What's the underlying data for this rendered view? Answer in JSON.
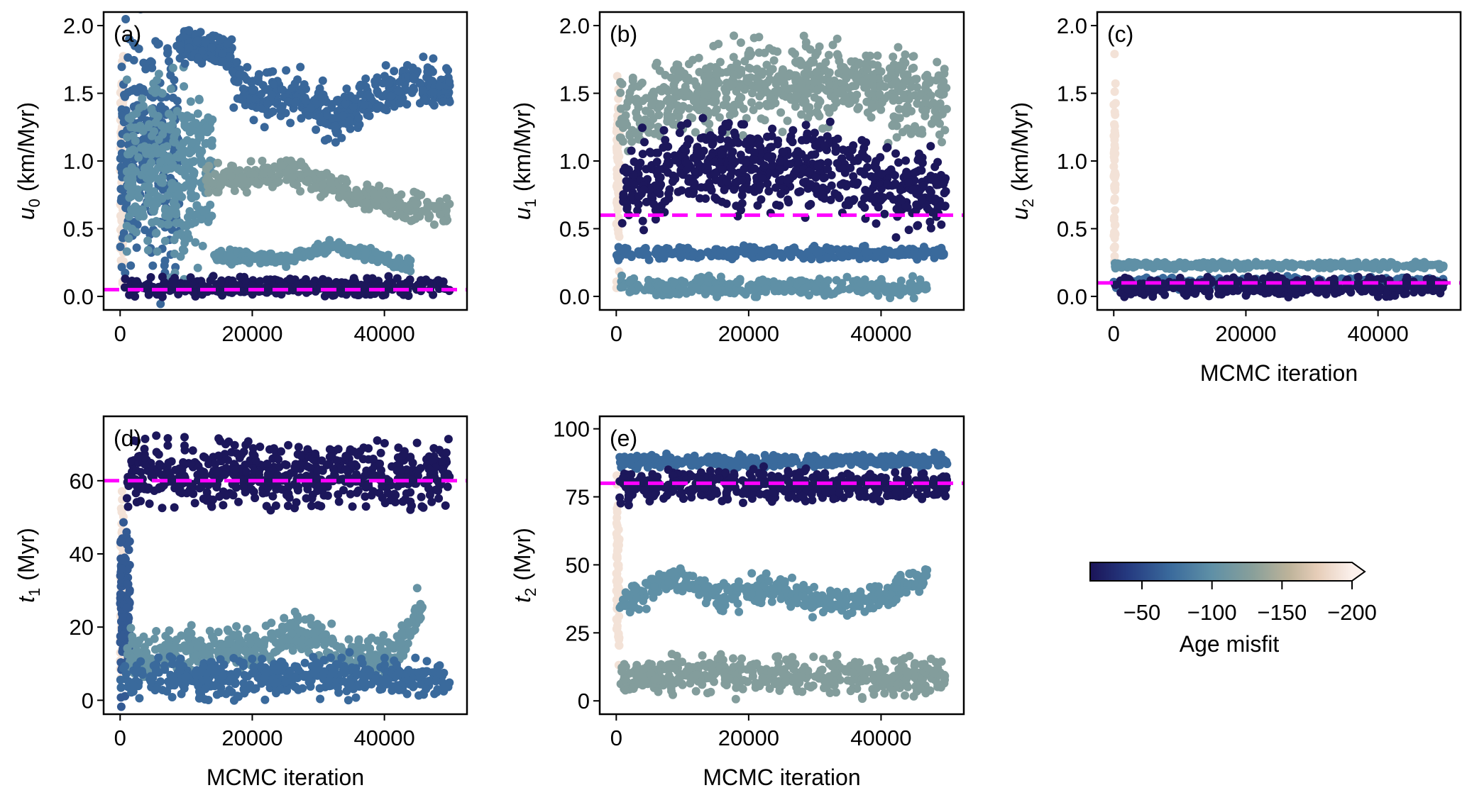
{
  "chart_data": [
    {
      "type": "scatter",
      "panel_label": "(a)",
      "ylabel": {
        "var": "u",
        "sub": "0",
        "unit": "(km/Myr)"
      },
      "xlabel": "",
      "xlim": [
        -2500,
        52500
      ],
      "ylim": [
        -0.1,
        2.1
      ],
      "xticks": [
        0,
        20000,
        40000
      ],
      "xtick_labels": [
        "0",
        "20000",
        "40000"
      ],
      "yticks": [
        0,
        0.5,
        1.0,
        1.5,
        2.0
      ],
      "ytick_labels": [
        "0.0",
        "0.5",
        "1.0",
        "1.5",
        "2.0"
      ],
      "true_value": 0.05,
      "grid": false,
      "clusters": [
        {
          "x": [
            0,
            500
          ],
          "path": [
            [
              0,
              0.9
            ],
            [
              500,
              0.9
            ]
          ],
          "spread": 0.9,
          "misfit": -190
        },
        {
          "x": [
            0,
            9000
          ],
          "path": [
            [
              0,
              1.05
            ],
            [
              9000,
              1.05
            ]
          ],
          "spread": 0.95,
          "misfit": -68
        },
        {
          "x": [
            1000,
            14000
          ],
          "path": [
            [
              1000,
              0.9
            ],
            [
              14000,
              0.9
            ]
          ],
          "spread": 0.75,
          "misfit": -100
        },
        {
          "x": [
            9000,
            17000
          ],
          "path": [
            [
              9000,
              1.85
            ],
            [
              17000,
              1.8
            ]
          ],
          "spread": 0.15,
          "misfit": -68
        },
        {
          "x": [
            17000,
            50000
          ],
          "path": [
            [
              17000,
              1.6
            ],
            [
              22000,
              1.45
            ],
            [
              27000,
              1.5
            ],
            [
              32000,
              1.3
            ],
            [
              40000,
              1.5
            ],
            [
              45000,
              1.6
            ],
            [
              50000,
              1.5
            ]
          ],
          "spread": 0.2,
          "misfit": -68
        },
        {
          "x": [
            13000,
            50000
          ],
          "path": [
            [
              13000,
              0.85
            ],
            [
              22000,
              0.9
            ],
            [
              26000,
              0.92
            ],
            [
              35000,
              0.75
            ],
            [
              45000,
              0.65
            ],
            [
              50000,
              0.6
            ]
          ],
          "spread": 0.12,
          "misfit": -125
        },
        {
          "x": [
            14000,
            44000
          ],
          "path": [
            [
              14000,
              0.3
            ],
            [
              25000,
              0.27
            ],
            [
              32000,
              0.37
            ],
            [
              38000,
              0.3
            ],
            [
              44000,
              0.22
            ]
          ],
          "spread": 0.05,
          "misfit": -100
        },
        {
          "x": [
            500,
            50000
          ],
          "path": [
            [
              500,
              0.07
            ],
            [
              50000,
              0.07
            ]
          ],
          "spread": 0.08,
          "misfit": -15
        }
      ]
    },
    {
      "type": "scatter",
      "panel_label": "(b)",
      "ylabel": {
        "var": "u",
        "sub": "1",
        "unit": "(km/Myr)"
      },
      "xlabel": "",
      "xlim": [
        -2500,
        52500
      ],
      "ylim": [
        -0.1,
        2.1
      ],
      "xticks": [
        0,
        20000,
        40000
      ],
      "xtick_labels": [
        "0",
        "20000",
        "40000"
      ],
      "yticks": [
        0,
        0.5,
        1.0,
        1.5,
        2.0
      ],
      "ytick_labels": [
        "0.0",
        "0.5",
        "1.0",
        "1.5",
        "2.0"
      ],
      "true_value": 0.6,
      "grid": false,
      "clusters": [
        {
          "x": [
            0,
            500
          ],
          "path": [
            [
              0,
              1.0
            ],
            [
              500,
              1.0
            ]
          ],
          "spread": 0.9,
          "misfit": -190
        },
        {
          "x": [
            500,
            50000
          ],
          "path": [
            [
              500,
              1.3
            ],
            [
              10000,
              1.5
            ],
            [
              20000,
              1.6
            ],
            [
              30000,
              1.6
            ],
            [
              40000,
              1.55
            ],
            [
              50000,
              1.4
            ]
          ],
          "spread": 0.35,
          "misfit": -125
        },
        {
          "x": [
            500,
            47000
          ],
          "path": [
            [
              500,
              0.07
            ],
            [
              47000,
              0.07
            ]
          ],
          "spread": 0.08,
          "misfit": -100
        },
        {
          "x": [
            0,
            50000
          ],
          "path": [
            [
              0,
              0.32
            ],
            [
              50000,
              0.32
            ]
          ],
          "spread": 0.05,
          "misfit": -70
        },
        {
          "x": [
            800,
            50000
          ],
          "path": [
            [
              800,
              0.8
            ],
            [
              12000,
              1.0
            ],
            [
              20000,
              0.95
            ],
            [
              30000,
              0.95
            ],
            [
              40000,
              0.8
            ],
            [
              50000,
              0.75
            ]
          ],
          "spread": 0.35,
          "misfit": -15
        }
      ]
    },
    {
      "type": "scatter",
      "panel_label": "(c)",
      "ylabel": {
        "var": "u",
        "sub": "2",
        "unit": "(km/Myr)"
      },
      "xlabel": "MCMC iteration",
      "xlim": [
        -2500,
        52500
      ],
      "ylim": [
        -0.1,
        2.1
      ],
      "xticks": [
        0,
        20000,
        40000
      ],
      "xtick_labels": [
        "0",
        "20000",
        "40000"
      ],
      "yticks": [
        0,
        0.5,
        1.0,
        1.5,
        2.0
      ],
      "ytick_labels": [
        "0.0",
        "0.5",
        "1.0",
        "1.5",
        "2.0"
      ],
      "true_value": 0.1,
      "grid": false,
      "clusters": [
        {
          "x": [
            0,
            300
          ],
          "path": [
            [
              0,
              0.9
            ],
            [
              300,
              0.9
            ]
          ],
          "spread": 0.85,
          "misfit": -190
        },
        {
          "x": [
            0,
            50000
          ],
          "path": [
            [
              0,
              0.23
            ],
            [
              50000,
              0.23
            ]
          ],
          "spread": 0.03,
          "misfit": -100
        },
        {
          "x": [
            0,
            50000
          ],
          "path": [
            [
              0,
              0.1
            ],
            [
              50000,
              0.1
            ]
          ],
          "spread": 0.05,
          "misfit": -70
        },
        {
          "x": [
            200,
            50000
          ],
          "path": [
            [
              200,
              0.07
            ],
            [
              50000,
              0.07
            ]
          ],
          "spread": 0.08,
          "misfit": -15
        }
      ]
    },
    {
      "type": "scatter",
      "panel_label": "(d)",
      "ylabel": {
        "var": "t",
        "sub": "1",
        "unit": "(Myr)"
      },
      "xlabel": "MCMC iteration",
      "xlim": [
        -2500,
        52500
      ],
      "ylim": [
        -3.8,
        77.6
      ],
      "xticks": [
        0,
        20000,
        40000
      ],
      "xtick_labels": [
        "0",
        "20000",
        "40000"
      ],
      "yticks": [
        0,
        20,
        40,
        60
      ],
      "ytick_labels": [
        "0",
        "20",
        "40",
        "60"
      ],
      "true_value": 60,
      "grid": false,
      "clusters": [
        {
          "x": [
            0,
            500
          ],
          "path": [
            [
              0,
              30
            ],
            [
              500,
              30
            ]
          ],
          "spread": 30,
          "misfit": -190
        },
        {
          "x": [
            0,
            1500
          ],
          "path": [
            [
              0,
              25
            ],
            [
              1500,
              25
            ]
          ],
          "spread": 25,
          "misfit": -60
        },
        {
          "x": [
            1000,
            46000
          ],
          "path": [
            [
              1000,
              12
            ],
            [
              20000,
              14
            ],
            [
              28000,
              18
            ],
            [
              35000,
              10
            ],
            [
              42000,
              12
            ],
            [
              45000,
              25
            ]
          ],
          "spread": 7,
          "misfit": -105
        },
        {
          "x": [
            0,
            50000
          ],
          "path": [
            [
              0,
              6
            ],
            [
              20000,
              6
            ],
            [
              30000,
              7
            ],
            [
              50000,
              5
            ]
          ],
          "spread": 6,
          "misfit": -70
        },
        {
          "x": [
            1000,
            50000
          ],
          "path": [
            [
              1000,
              62
            ],
            [
              50000,
              62
            ]
          ],
          "spread": 10,
          "misfit": -15
        }
      ]
    },
    {
      "type": "scatter",
      "panel_label": "(e)",
      "ylabel": {
        "var": "t",
        "sub": "2",
        "unit": "(Myr)"
      },
      "xlabel": "MCMC iteration",
      "xlim": [
        -2500,
        52500
      ],
      "ylim": [
        -4.9,
        104.6
      ],
      "xticks": [
        0,
        20000,
        40000
      ],
      "xtick_labels": [
        "0",
        "20000",
        "40000"
      ],
      "yticks": [
        0,
        25,
        50,
        75,
        100
      ],
      "ytick_labels": [
        "0",
        "25",
        "50",
        "75",
        "100"
      ],
      "true_value": 80,
      "grid": false,
      "clusters": [
        {
          "x": [
            0,
            500
          ],
          "path": [
            [
              0,
              45
            ],
            [
              500,
              45
            ]
          ],
          "spread": 40,
          "misfit": -190
        },
        {
          "x": [
            500,
            50000
          ],
          "path": [
            [
              500,
              88
            ],
            [
              50000,
              88
            ]
          ],
          "spread": 3,
          "misfit": -70
        },
        {
          "x": [
            500,
            47000
          ],
          "path": [
            [
              500,
              35
            ],
            [
              8000,
              45
            ],
            [
              14000,
              42
            ],
            [
              16000,
              38
            ],
            [
              24000,
              42
            ],
            [
              30000,
              37
            ],
            [
              36000,
              36
            ],
            [
              42000,
              40
            ],
            [
              47000,
              45
            ]
          ],
          "spread": 6,
          "misfit": -100
        },
        {
          "x": [
            500,
            50000
          ],
          "path": [
            [
              500,
              9
            ],
            [
              50000,
              9
            ]
          ],
          "spread": 8,
          "misfit": -125
        },
        {
          "x": [
            500,
            50000
          ],
          "path": [
            [
              500,
              79
            ],
            [
              50000,
              79
            ]
          ],
          "spread": 7,
          "misfit": -15
        }
      ]
    }
  ],
  "colorbar": {
    "label": "Age misfit",
    "range": [
      -13,
      -200
    ],
    "extend": "max",
    "ticks": [
      -50,
      -100,
      -150,
      -200
    ],
    "tick_labels": [
      "−50",
      "−100",
      "−150",
      "−200"
    ],
    "stops": [
      [
        -13,
        "#1b1458"
      ],
      [
        -40,
        "#253a80"
      ],
      [
        -70,
        "#3a6a9c"
      ],
      [
        -100,
        "#5f90a6"
      ],
      [
        -130,
        "#8aa09a"
      ],
      [
        -155,
        "#bdb39a"
      ],
      [
        -175,
        "#e6cdb8"
      ],
      [
        -200,
        "#fbf0ec"
      ]
    ]
  },
  "colors": {
    "true_value_line": "#ff00ff"
  }
}
